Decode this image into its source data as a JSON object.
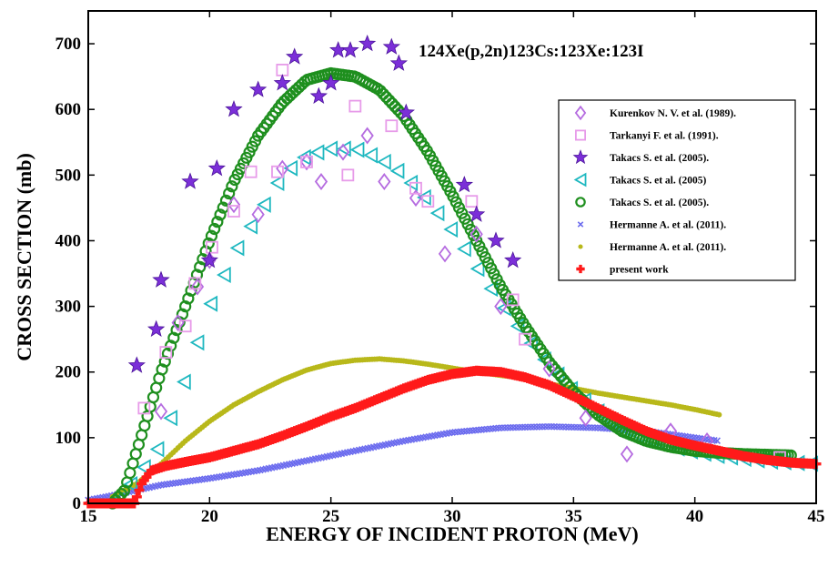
{
  "chart_data": {
    "type": "scatter",
    "title": "",
    "annotation": "124Xe(p,2n)123Cs:123Xe:123I",
    "xlabel": "ENERGY OF INCIDENT PROTON (MeV)",
    "ylabel": "CROSS SECTION (mb)",
    "xlim": [
      15,
      45
    ],
    "ylim": [
      0,
      750
    ],
    "xticks": [
      15,
      20,
      25,
      30,
      35,
      40,
      45
    ],
    "yticks": [
      0,
      100,
      200,
      300,
      400,
      500,
      600,
      700
    ],
    "grid": false,
    "legend_position": "right",
    "series": [
      {
        "name": "Kurenkov N. V. et al. (1989).",
        "marker": "diamond",
        "color": "#b56be0",
        "points": [
          [
            18.0,
            140
          ],
          [
            18.7,
            275
          ],
          [
            19.5,
            330
          ],
          [
            20.0,
            370
          ],
          [
            21.0,
            455
          ],
          [
            22.0,
            440
          ],
          [
            23.0,
            510
          ],
          [
            24.0,
            520
          ],
          [
            24.6,
            490
          ],
          [
            25.5,
            535
          ],
          [
            26.5,
            560
          ],
          [
            27.2,
            490
          ],
          [
            28.5,
            465
          ],
          [
            29.7,
            380
          ],
          [
            31.0,
            410
          ],
          [
            32.0,
            300
          ],
          [
            34.0,
            205
          ],
          [
            35.5,
            130
          ],
          [
            37.2,
            75
          ],
          [
            39.0,
            110
          ],
          [
            40.5,
            95
          ]
        ]
      },
      {
        "name": "Tarkanyi F. et al. (1991).",
        "marker": "square",
        "color": "#e79be9",
        "points": [
          [
            17.3,
            145
          ],
          [
            18.2,
            230
          ],
          [
            19.0,
            270
          ],
          [
            19.4,
            335
          ],
          [
            20.1,
            390
          ],
          [
            21.0,
            445
          ],
          [
            21.7,
            505
          ],
          [
            22.8,
            505
          ],
          [
            23.0,
            660
          ],
          [
            24.0,
            520
          ],
          [
            25.7,
            500
          ],
          [
            26.0,
            605
          ],
          [
            27.5,
            575
          ],
          [
            28.5,
            480
          ],
          [
            29.0,
            460
          ],
          [
            30.8,
            460
          ],
          [
            32.5,
            310
          ],
          [
            33.0,
            250
          ],
          [
            43.5,
            70
          ]
        ]
      },
      {
        "name": "Takacs S. et al. (2005).",
        "marker": "star",
        "color": "#7b2fd8",
        "points": [
          [
            17.0,
            210
          ],
          [
            17.8,
            265
          ],
          [
            18.0,
            340
          ],
          [
            19.2,
            490
          ],
          [
            20.0,
            370
          ],
          [
            20.3,
            510
          ],
          [
            21.0,
            600
          ],
          [
            22.0,
            630
          ],
          [
            23.0,
            640
          ],
          [
            23.5,
            680
          ],
          [
            24.5,
            620
          ],
          [
            25.0,
            640
          ],
          [
            25.3,
            690
          ],
          [
            25.8,
            690
          ],
          [
            26.5,
            700
          ],
          [
            27.5,
            695
          ],
          [
            27.8,
            670
          ],
          [
            28.1,
            595
          ],
          [
            30.5,
            485
          ],
          [
            31.0,
            440
          ],
          [
            31.8,
            400
          ],
          [
            32.5,
            370
          ]
        ]
      },
      {
        "name": "Takacs S. et al. (2005)",
        "marker": "triangle-left",
        "color": "#1eb8c0",
        "curve": [
          [
            16.2,
            5
          ],
          [
            17.0,
            40
          ],
          [
            18.0,
            90
          ],
          [
            19.0,
            190
          ],
          [
            20.0,
            300
          ],
          [
            21.0,
            380
          ],
          [
            22.0,
            440
          ],
          [
            23.0,
            500
          ],
          [
            24.0,
            530
          ],
          [
            25.0,
            540
          ],
          [
            26.0,
            540
          ],
          [
            27.0,
            525
          ],
          [
            28.0,
            500
          ],
          [
            29.0,
            460
          ],
          [
            30.0,
            415
          ],
          [
            31.0,
            360
          ],
          [
            32.0,
            305
          ],
          [
            33.0,
            255
          ],
          [
            34.0,
            210
          ],
          [
            35.0,
            170
          ],
          [
            36.0,
            140
          ],
          [
            37.0,
            115
          ],
          [
            38.0,
            98
          ],
          [
            39.0,
            86
          ],
          [
            40.0,
            78
          ],
          [
            41.0,
            72
          ],
          [
            42.0,
            68
          ],
          [
            43.0,
            64
          ],
          [
            44.0,
            62
          ],
          [
            45.0,
            60
          ]
        ],
        "step": 0.55,
        "x_range": [
          16.2,
          45.0
        ]
      },
      {
        "name": "Takacs S. et al. (2005).",
        "marker": "circle",
        "color": "#1e8f1e",
        "curve": [
          [
            16.0,
            0
          ],
          [
            16.5,
            20
          ],
          [
            17.0,
            80
          ],
          [
            17.5,
            140
          ],
          [
            18.0,
            200
          ],
          [
            19.0,
            300
          ],
          [
            20.0,
            400
          ],
          [
            21.0,
            490
          ],
          [
            22.0,
            560
          ],
          [
            23.0,
            610
          ],
          [
            24.0,
            645
          ],
          [
            25.0,
            655
          ],
          [
            26.0,
            650
          ],
          [
            27.0,
            630
          ],
          [
            28.0,
            590
          ],
          [
            29.0,
            535
          ],
          [
            30.0,
            470
          ],
          [
            31.0,
            400
          ],
          [
            32.0,
            330
          ],
          [
            33.0,
            270
          ],
          [
            34.0,
            215
          ],
          [
            35.0,
            170
          ],
          [
            36.0,
            135
          ],
          [
            37.0,
            110
          ],
          [
            38.0,
            95
          ],
          [
            39.0,
            86
          ],
          [
            40.0,
            80
          ],
          [
            41.0,
            77
          ],
          [
            42.0,
            75
          ],
          [
            43.0,
            74
          ],
          [
            44.0,
            73
          ]
        ],
        "step": 0.12,
        "x_range": [
          16.0,
          44.0
        ]
      },
      {
        "name": " Hermanne A. et al. (2011).",
        "marker": "x",
        "color": "#6a6aee",
        "curve": [
          [
            15.0,
            5
          ],
          [
            16.0,
            12
          ],
          [
            17.0,
            20
          ],
          [
            18.0,
            28
          ],
          [
            20.0,
            38
          ],
          [
            22.0,
            50
          ],
          [
            24.0,
            65
          ],
          [
            26.0,
            80
          ],
          [
            28.0,
            95
          ],
          [
            30.0,
            108
          ],
          [
            32.0,
            115
          ],
          [
            34.0,
            117
          ],
          [
            36.0,
            115
          ],
          [
            38.0,
            110
          ],
          [
            40.0,
            100
          ],
          [
            41.0,
            95
          ]
        ],
        "step": 0.12,
        "x_range": [
          15.0,
          41.0
        ]
      },
      {
        "name": "Hermanne A. et al. (2011).",
        "marker": "dot",
        "color": "#b8b81a",
        "curve": [
          [
            16.0,
            10
          ],
          [
            17.0,
            30
          ],
          [
            18.0,
            60
          ],
          [
            19.0,
            95
          ],
          [
            20.0,
            125
          ],
          [
            21.0,
            150
          ],
          [
            22.0,
            170
          ],
          [
            23.0,
            188
          ],
          [
            24.0,
            203
          ],
          [
            25.0,
            213
          ],
          [
            26.0,
            218
          ],
          [
            27.0,
            220
          ],
          [
            28.0,
            217
          ],
          [
            29.0,
            212
          ],
          [
            30.0,
            206
          ],
          [
            31.0,
            200
          ],
          [
            32.0,
            195
          ],
          [
            33.0,
            190
          ],
          [
            34.0,
            182
          ],
          [
            35.0,
            175
          ],
          [
            36.0,
            168
          ],
          [
            37.0,
            162
          ],
          [
            38.0,
            156
          ],
          [
            39.0,
            150
          ],
          [
            40.0,
            143
          ],
          [
            41.0,
            135
          ]
        ],
        "step": 0.1,
        "x_range": [
          16.0,
          41.0
        ]
      },
      {
        "name": "present work",
        "marker": "plus",
        "color": "#ff1a1a",
        "curve": [
          [
            15.0,
            0
          ],
          [
            16.0,
            0
          ],
          [
            16.9,
            0
          ],
          [
            17.2,
            30
          ],
          [
            17.6,
            50
          ],
          [
            18.2,
            57
          ],
          [
            19.0,
            63
          ],
          [
            20.0,
            70
          ],
          [
            21.0,
            80
          ],
          [
            22.0,
            90
          ],
          [
            23.0,
            103
          ],
          [
            24.0,
            117
          ],
          [
            25.0,
            132
          ],
          [
            26.0,
            145
          ],
          [
            27.0,
            160
          ],
          [
            28.0,
            175
          ],
          [
            29.0,
            188
          ],
          [
            30.0,
            197
          ],
          [
            31.0,
            202
          ],
          [
            32.0,
            200
          ],
          [
            33.0,
            192
          ],
          [
            34.0,
            180
          ],
          [
            35.0,
            163
          ],
          [
            36.0,
            145
          ],
          [
            37.0,
            127
          ],
          [
            38.0,
            110
          ],
          [
            39.0,
            97
          ],
          [
            40.0,
            88
          ],
          [
            41.0,
            80
          ],
          [
            42.0,
            72
          ],
          [
            43.0,
            66
          ],
          [
            44.0,
            62
          ],
          [
            45.0,
            60
          ]
        ],
        "step": 0.1,
        "x_range": [
          15.0,
          45.0
        ]
      }
    ]
  }
}
